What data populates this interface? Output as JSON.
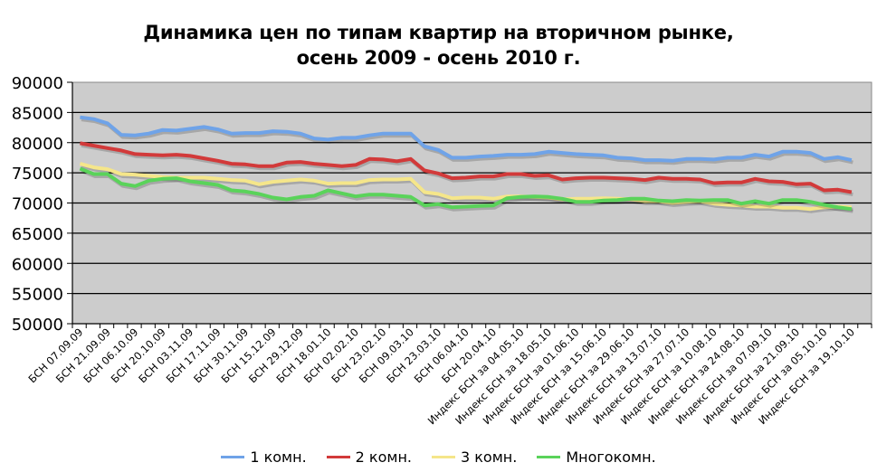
{
  "chart_data": {
    "type": "line",
    "title": "Динамика цен по типам квартир на вторичном рынке, осень 2009 - осень 2010 г.",
    "title_lines": [
      "Динамика цен по типам квартир на вторичном рынке,",
      "осень 2009 - осень 2010 г."
    ],
    "xlabel": "",
    "ylabel": "",
    "ylim": [
      50000,
      90000
    ],
    "yticks": [
      90000,
      85000,
      80000,
      75000,
      70000,
      65000,
      60000,
      55000,
      50000
    ],
    "grid": true,
    "legend_position": "bottom",
    "plot_background": "#cccccc",
    "x_tick_labels": [
      "БСН 07.09.09",
      "БСН 21.09.09",
      "БСН 06.10.09",
      "БСН 20.10.09",
      "БСН 03.11.09",
      "БСН 17.11.09",
      "БСН 30.11.09",
      "БСН 15.12.09",
      "БСН 29.12.09",
      "БСН 18.01.10",
      "БСН 02.02.10",
      "БСН 23.02.10",
      "БСН 09.03.10",
      "БСН 23.03.10",
      "БСН 06.04.10",
      "БСН 20.04.10",
      "Индекс  БСН за 04.05.10",
      "Индекс  БСН за 18.05.10",
      "Индекс  БСН за 01.06.10",
      "Индекс  БСН за 15.06.10",
      "Индекс  БСН за 29.06.10",
      "Индекс  БСН за 13.07.10",
      "Индекс  БСН за 27.07.10",
      "Индекс  БСН за 10.08.10",
      "Индекс  БСН за 24.08.10",
      "Индекс  БСН за 07.09.10",
      "Индекс  БСН за 21.09.10",
      "Индекс  БСН за 05.10.10",
      "Индекс  БСН за 19.10.10"
    ],
    "series": [
      {
        "name": "1 комн.",
        "color": "#6fa3e8",
        "values": [
          84200,
          83900,
          83200,
          81300,
          81200,
          81500,
          82100,
          82000,
          82300,
          82600,
          82200,
          81500,
          81600,
          81600,
          81900,
          81800,
          81500,
          80700,
          80500,
          80800,
          80800,
          81200,
          81500,
          81500,
          81500,
          79400,
          78800,
          77500,
          77500,
          77700,
          77800,
          78000,
          78000,
          78100,
          78500,
          78300,
          78100,
          78000,
          77900,
          77500,
          77400,
          77100,
          77100,
          77000,
          77300,
          77300,
          77200,
          77500,
          77500,
          78000,
          77700,
          78500,
          78500,
          78300,
          77300,
          77600,
          77100
        ]
      },
      {
        "name": "2 комн.",
        "color": "#d23a3a",
        "values": [
          79900,
          79500,
          79100,
          78700,
          78100,
          78000,
          77900,
          78000,
          77800,
          77400,
          77000,
          76500,
          76400,
          76100,
          76100,
          76700,
          76800,
          76500,
          76300,
          76100,
          76300,
          77300,
          77200,
          76900,
          77300,
          75400,
          74900,
          74100,
          74200,
          74400,
          74400,
          74800,
          74800,
          74500,
          74600,
          73900,
          74100,
          74200,
          74200,
          74100,
          74000,
          73800,
          74200,
          74000,
          74000,
          73900,
          73300,
          73400,
          73400,
          74000,
          73600,
          73500,
          73100,
          73200,
          72100,
          72200,
          71800
        ]
      },
      {
        "name": "3 комн.",
        "color": "#f5e68a",
        "values": [
          76500,
          75900,
          75600,
          74800,
          74700,
          74500,
          74300,
          74200,
          74200,
          74200,
          74000,
          73800,
          73700,
          73100,
          73500,
          73700,
          73900,
          73700,
          73200,
          73300,
          73300,
          73800,
          73900,
          73900,
          74000,
          71800,
          71500,
          70800,
          70900,
          70900,
          70700,
          71100,
          71100,
          71000,
          70900,
          70600,
          70700,
          70700,
          70800,
          70700,
          70600,
          70300,
          70300,
          70000,
          70200,
          70300,
          69900,
          69700,
          69600,
          69400,
          69400,
          69200,
          69200,
          69000,
          69300,
          69400,
          69300
        ]
      },
      {
        "name": "Многокомн.",
        "color": "#5ad35a",
        "values": [
          75700,
          74800,
          74800,
          73200,
          72800,
          73700,
          74000,
          74100,
          73600,
          73300,
          73000,
          72100,
          71900,
          71500,
          70900,
          70600,
          71000,
          71200,
          72100,
          71600,
          71100,
          71400,
          71400,
          71200,
          71000,
          69600,
          69800,
          69300,
          69400,
          69500,
          69600,
          70800,
          71000,
          71100,
          71000,
          70700,
          70200,
          70200,
          70400,
          70500,
          70700,
          70700,
          70400,
          70300,
          70500,
          70400,
          70500,
          70500,
          69900,
          70300,
          69900,
          70500,
          70500,
          70200,
          69700,
          69300,
          69000
        ]
      }
    ]
  },
  "legend": {
    "items": [
      {
        "label": "1 комн.",
        "color": "#6fa3e8"
      },
      {
        "label": "2 комн.",
        "color": "#d23a3a"
      },
      {
        "label": "3 комн.",
        "color": "#f5e68a"
      },
      {
        "label": "Многокомн.",
        "color": "#5ad35a"
      }
    ]
  }
}
